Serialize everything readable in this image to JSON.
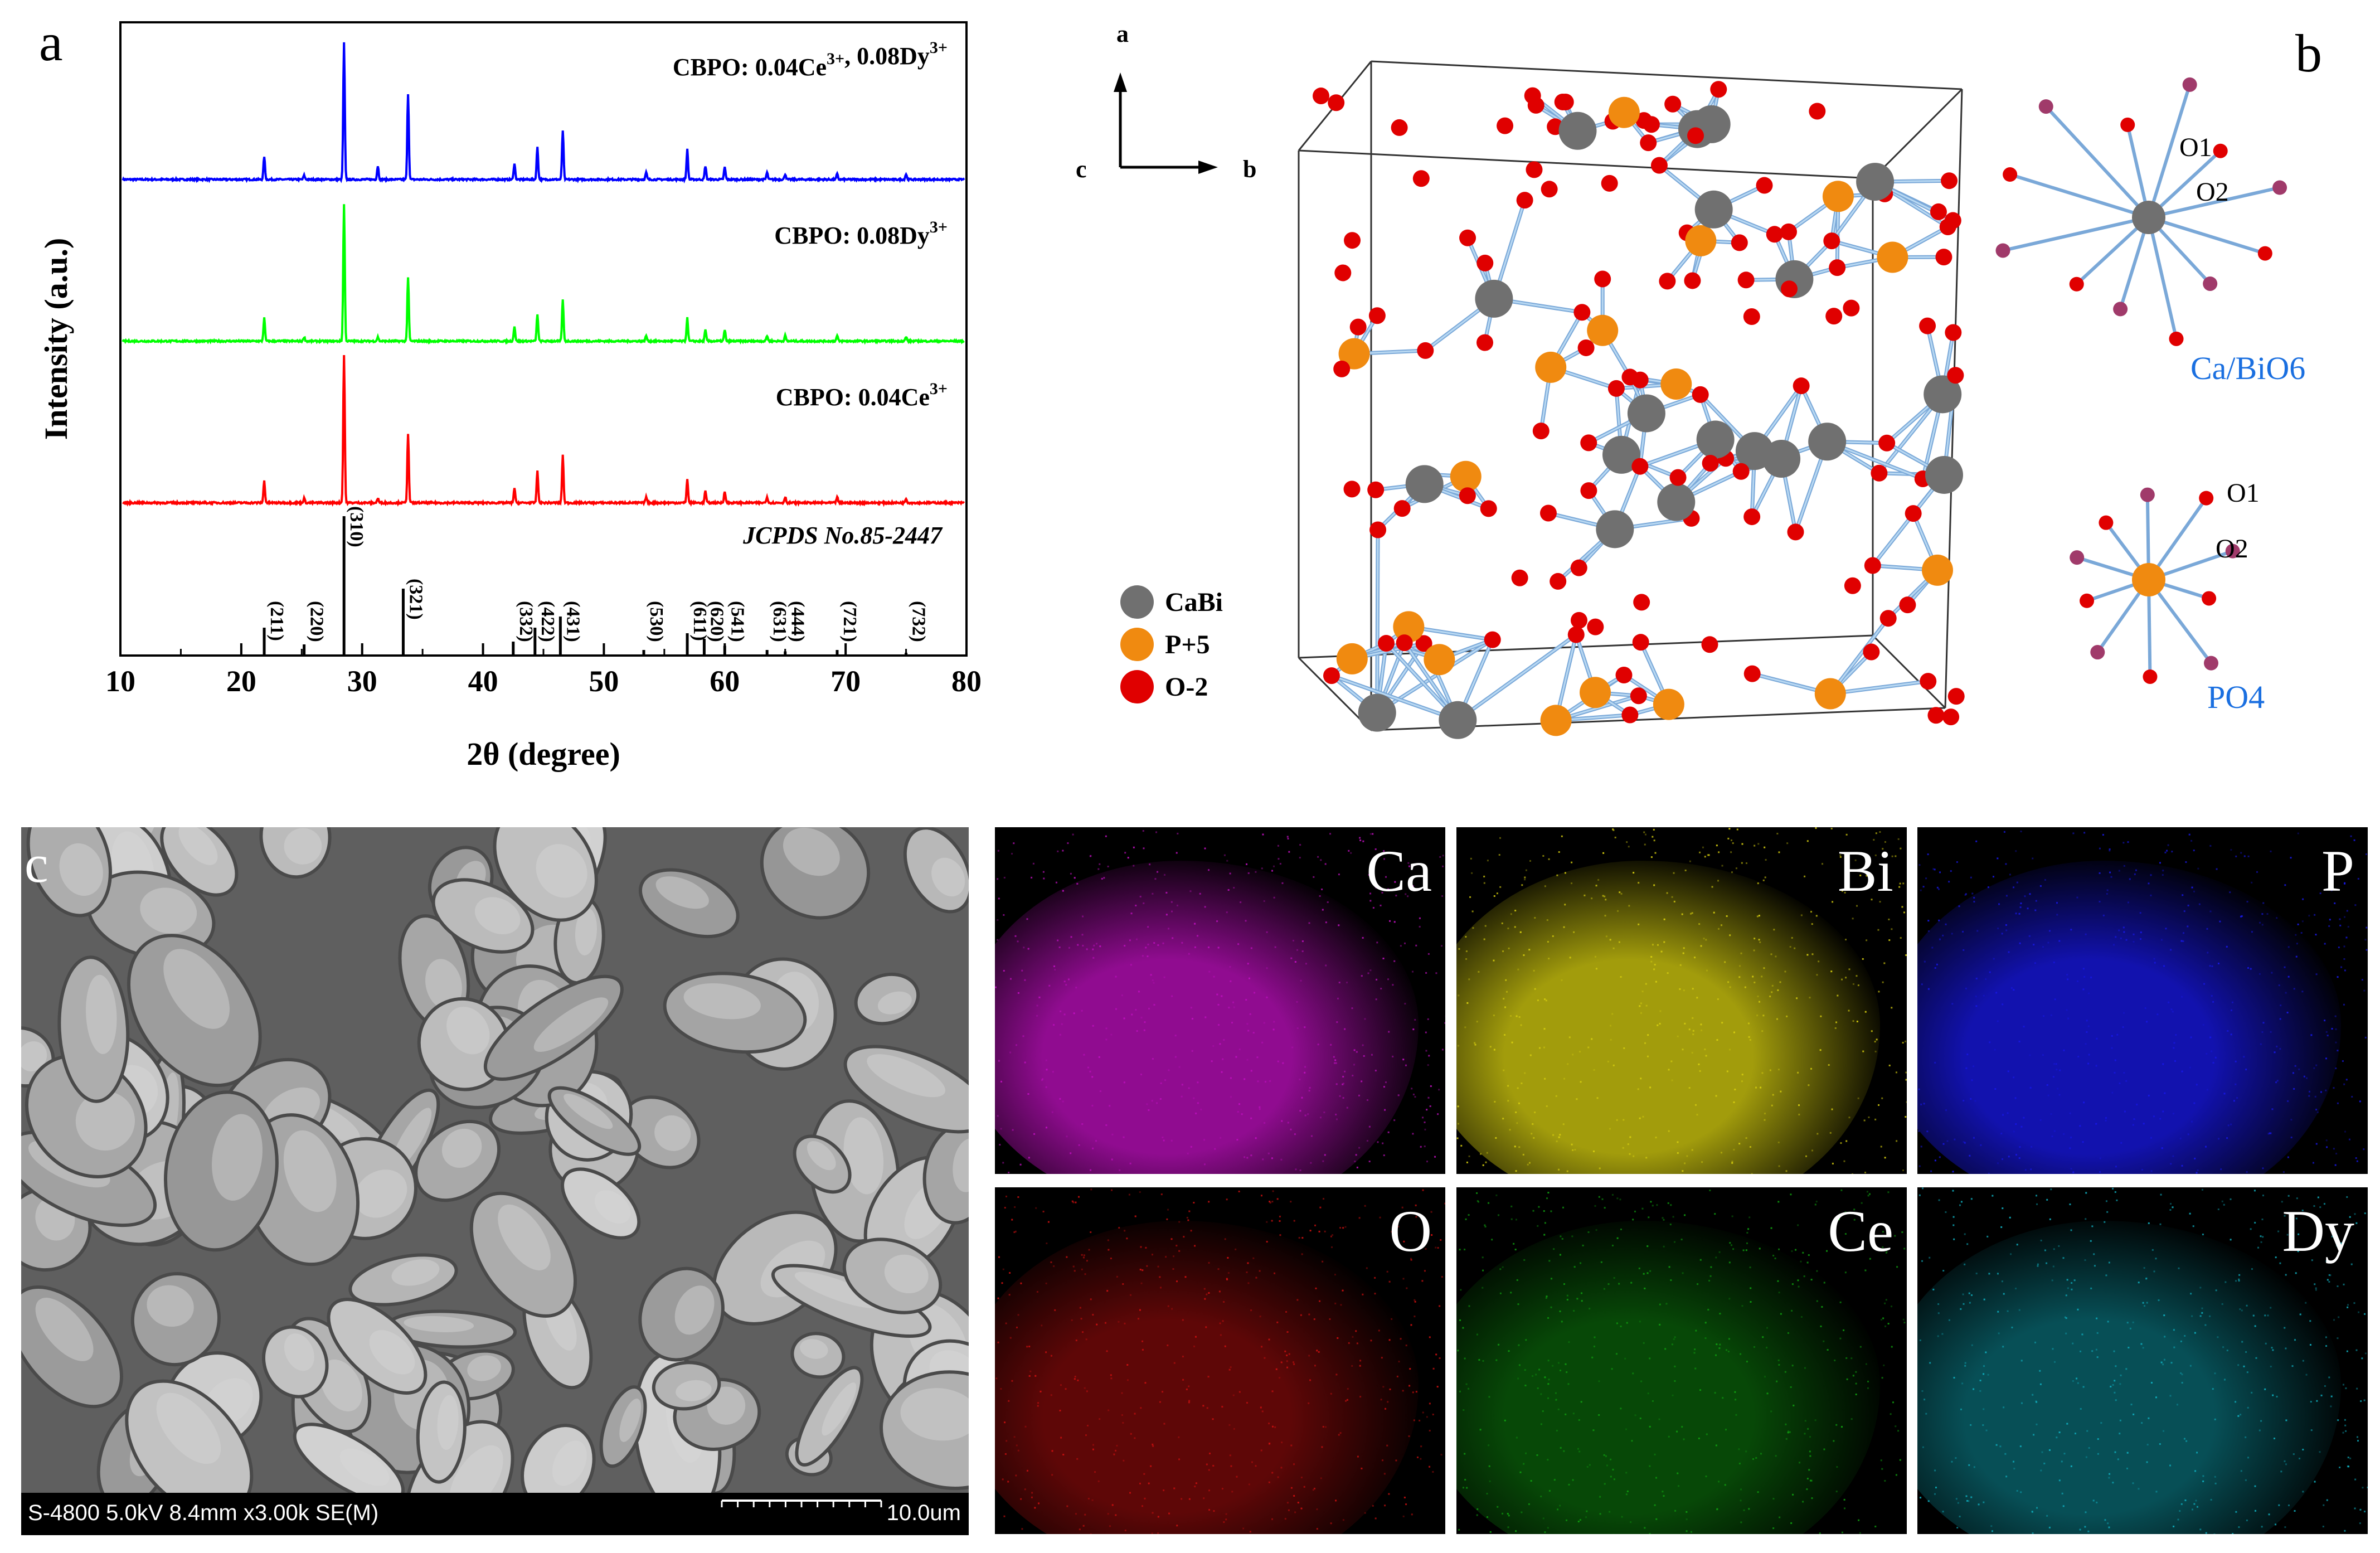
{
  "panels": {
    "a": "a",
    "b": "b",
    "c": "c"
  },
  "chart_data": {
    "type": "line",
    "xlabel": "2θ (degree)",
    "ylabel": "Intensity (a.u.)",
    "xlim": [
      10,
      80
    ],
    "xticks": [
      10,
      20,
      30,
      40,
      50,
      60,
      70,
      80
    ],
    "series": [
      {
        "name": "CBPO: 0.04Ce3+, 0.08Dy3+",
        "color": "#0000ff",
        "peaks": [
          {
            "x": 21.9,
            "h": 0.17
          },
          {
            "x": 25.2,
            "h": 0.03
          },
          {
            "x": 28.5,
            "h": 1.0
          },
          {
            "x": 31.3,
            "h": 0.1
          },
          {
            "x": 33.8,
            "h": 0.63
          },
          {
            "x": 42.6,
            "h": 0.12
          },
          {
            "x": 44.5,
            "h": 0.24
          },
          {
            "x": 46.6,
            "h": 0.36
          },
          {
            "x": 53.5,
            "h": 0.05
          },
          {
            "x": 56.9,
            "h": 0.22
          },
          {
            "x": 58.4,
            "h": 0.1
          },
          {
            "x": 60.0,
            "h": 0.09
          },
          {
            "x": 63.5,
            "h": 0.05
          },
          {
            "x": 65.0,
            "h": 0.04
          },
          {
            "x": 69.3,
            "h": 0.04
          },
          {
            "x": 75.0,
            "h": 0.04
          }
        ]
      },
      {
        "name": "CBPO: 0.08Dy3+",
        "color": "#00ff00",
        "peaks": [
          {
            "x": 21.9,
            "h": 0.17
          },
          {
            "x": 25.2,
            "h": 0.03
          },
          {
            "x": 28.5,
            "h": 1.0
          },
          {
            "x": 31.3,
            "h": 0.03
          },
          {
            "x": 33.8,
            "h": 0.47
          },
          {
            "x": 42.6,
            "h": 0.11
          },
          {
            "x": 44.5,
            "h": 0.2
          },
          {
            "x": 46.6,
            "h": 0.3
          },
          {
            "x": 53.5,
            "h": 0.04
          },
          {
            "x": 56.9,
            "h": 0.17
          },
          {
            "x": 58.4,
            "h": 0.08
          },
          {
            "x": 60.0,
            "h": 0.08
          },
          {
            "x": 63.5,
            "h": 0.04
          },
          {
            "x": 65.0,
            "h": 0.04
          },
          {
            "x": 69.3,
            "h": 0.04
          },
          {
            "x": 75.0,
            "h": 0.03
          }
        ]
      },
      {
        "name": "CBPO: 0.04Ce3+",
        "color": "#ff0000",
        "peaks": [
          {
            "x": 21.9,
            "h": 0.15
          },
          {
            "x": 25.2,
            "h": 0.03
          },
          {
            "x": 28.5,
            "h": 1.0
          },
          {
            "x": 31.3,
            "h": 0.03
          },
          {
            "x": 33.8,
            "h": 0.47
          },
          {
            "x": 42.6,
            "h": 0.1
          },
          {
            "x": 44.5,
            "h": 0.22
          },
          {
            "x": 46.6,
            "h": 0.32
          },
          {
            "x": 53.5,
            "h": 0.04
          },
          {
            "x": 56.9,
            "h": 0.16
          },
          {
            "x": 58.4,
            "h": 0.08
          },
          {
            "x": 60.0,
            "h": 0.08
          },
          {
            "x": 63.5,
            "h": 0.04
          },
          {
            "x": 65.0,
            "h": 0.04
          },
          {
            "x": 69.3,
            "h": 0.04
          },
          {
            "x": 75.0,
            "h": 0.03
          }
        ]
      }
    ],
    "series_labels": [
      {
        "main": "CBPO: 0.04Ce",
        "rest": [
          {
            "sup": "3+"
          },
          {
            "text": ", 0.08Dy"
          },
          {
            "sup": "3+"
          }
        ]
      },
      {
        "main": "CBPO: 0.08Dy",
        "rest": [
          {
            "sup": "3+"
          }
        ]
      },
      {
        "main": "CBPO: 0.04Ce",
        "rest": [
          {
            "sup": "3+"
          }
        ]
      }
    ],
    "reference": {
      "name": "JCPDS No.85-2447",
      "lines": [
        {
          "x": 21.9,
          "h": 0.2,
          "hkl": "(211)"
        },
        {
          "x": 25.2,
          "h": 0.08,
          "hkl": "(220)"
        },
        {
          "x": 28.5,
          "h": 1.0,
          "hkl": "(310)"
        },
        {
          "x": 33.4,
          "h": 0.48,
          "hkl": "(321)"
        },
        {
          "x": 42.5,
          "h": 0.1,
          "hkl": "(332)"
        },
        {
          "x": 44.3,
          "h": 0.2,
          "hkl": "(422)"
        },
        {
          "x": 46.4,
          "h": 0.28,
          "hkl": "(431)"
        },
        {
          "x": 53.3,
          "h": 0.04,
          "hkl": "(530)"
        },
        {
          "x": 56.9,
          "h": 0.16,
          "hkl": "(611)"
        },
        {
          "x": 58.3,
          "h": 0.12,
          "hkl": "(620)"
        },
        {
          "x": 60.0,
          "h": 0.07,
          "hkl": "(541)"
        },
        {
          "x": 63.5,
          "h": 0.04,
          "hkl": "(631)"
        },
        {
          "x": 65.0,
          "h": 0.03,
          "hkl": "(444)"
        },
        {
          "x": 69.3,
          "h": 0.04,
          "hkl": "(721)"
        },
        {
          "x": 75.0,
          "h": 0.02,
          "hkl": "(732)"
        }
      ]
    }
  },
  "structure": {
    "axes": {
      "a": "a",
      "b": "b",
      "c": "c"
    },
    "legend": [
      {
        "label": "CaBi",
        "color": "#707070"
      },
      {
        "label": "P+5",
        "color": "#f08a10"
      },
      {
        "label": "O-2",
        "color": "#e00000"
      }
    ],
    "polyhedra": [
      {
        "title": "Ca/BiO6",
        "o1": "O1",
        "o2": "O2"
      },
      {
        "title": "PO4",
        "o1": "O1",
        "o2": "O2"
      }
    ],
    "label_color": "#1a6fe0"
  },
  "sem": {
    "info": "S-4800 5.0kV 8.4mm x3.00k SE(M)",
    "scale": "10.0um"
  },
  "maps": [
    {
      "label": "Ca",
      "color": "#c010c0"
    },
    {
      "label": "Bi",
      "color": "#d8d010"
    },
    {
      "label": "P",
      "color": "#1818e8"
    },
    {
      "label": "O",
      "color": "#d01010"
    },
    {
      "label": "Ce",
      "color": "#10a010"
    },
    {
      "label": "Dy",
      "color": "#10b0c0"
    }
  ]
}
